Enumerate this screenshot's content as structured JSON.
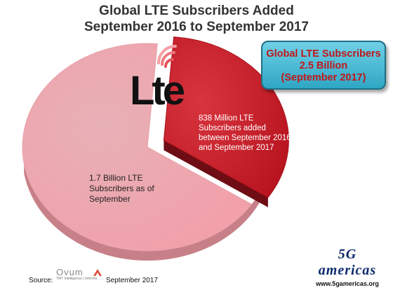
{
  "title": {
    "line1": "Global LTE Subscribers Added",
    "line2": "September 2016 to September 2017"
  },
  "callout": {
    "line1": "Global LTE Subscribers",
    "line2": "2.5 Billion",
    "line3": "(September 2017)"
  },
  "logo": {
    "text": "Lte",
    "name": "lte-logo"
  },
  "brand": {
    "mark": "5G americas",
    "url": "www.5gamericas.org"
  },
  "source": {
    "label": "Source:",
    "provider": "Ovum",
    "provider_sub": "TMT Intelligence | Informa",
    "date": "September 2017"
  },
  "colors": {
    "existing_slice": "#f0a0a8",
    "added_slice": "#c8202c",
    "added_side": "#6e0d14",
    "existing_side": "#c88088",
    "callout_text": "#c0171a"
  },
  "chart_data": {
    "type": "pie",
    "title": "Global LTE Subscribers Added September 2016 to September 2017",
    "slices": [
      {
        "label": "1.7 Billion LTE Subscribers as of September",
        "value": 1.7,
        "unit": "billion"
      },
      {
        "label": "838 Million LTE Subscribers added between September 2016 and September 2017",
        "value": 0.838,
        "unit": "billion",
        "exploded": true
      }
    ],
    "total": {
      "label": "Global LTE Subscribers 2.5 Billion (September 2017)",
      "value": 2.5
    },
    "legend": "none"
  }
}
